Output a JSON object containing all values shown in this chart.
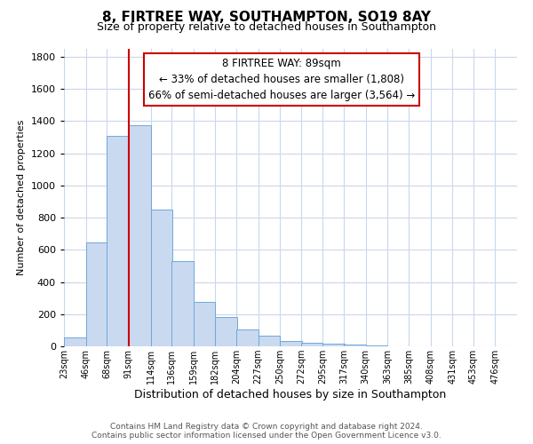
{
  "title1": "8, FIRTREE WAY, SOUTHAMPTON, SO19 8AY",
  "title2": "Size of property relative to detached houses in Southampton",
  "xlabel": "Distribution of detached houses by size in Southampton",
  "ylabel": "Number of detached properties",
  "bin_labels": [
    "23sqm",
    "46sqm",
    "68sqm",
    "91sqm",
    "114sqm",
    "136sqm",
    "159sqm",
    "182sqm",
    "204sqm",
    "227sqm",
    "250sqm",
    "272sqm",
    "295sqm",
    "317sqm",
    "340sqm",
    "363sqm",
    "385sqm",
    "408sqm",
    "431sqm",
    "453sqm",
    "476sqm"
  ],
  "bin_edges": [
    23,
    46,
    68,
    91,
    114,
    136,
    159,
    182,
    204,
    227,
    250,
    272,
    295,
    317,
    340,
    363,
    385,
    408,
    431,
    453,
    476
  ],
  "bar_heights": [
    55,
    645,
    1308,
    1375,
    850,
    528,
    278,
    183,
    103,
    68,
    35,
    22,
    18,
    10,
    5,
    2,
    1,
    0,
    0,
    0
  ],
  "bar_color": "#c9d9f0",
  "bar_edge_color": "#6fa8dc",
  "vline_x": 91,
  "vline_color": "#cc0000",
  "annotation_title": "8 FIRTREE WAY: 89sqm",
  "annotation_line1": "← 33% of detached houses are smaller (1,808)",
  "annotation_line2": "66% of semi-detached houses are larger (3,564) →",
  "annotation_box_color": "#ffffff",
  "annotation_box_edge": "#cc0000",
  "ylim": [
    0,
    1850
  ],
  "yticks": [
    0,
    200,
    400,
    600,
    800,
    1000,
    1200,
    1400,
    1600,
    1800
  ],
  "footer1": "Contains HM Land Registry data © Crown copyright and database right 2024.",
  "footer2": "Contains public sector information licensed under the Open Government Licence v3.0.",
  "background_color": "#ffffff",
  "grid_color": "#c8d8ec",
  "title1_fontsize": 11,
  "title2_fontsize": 9
}
